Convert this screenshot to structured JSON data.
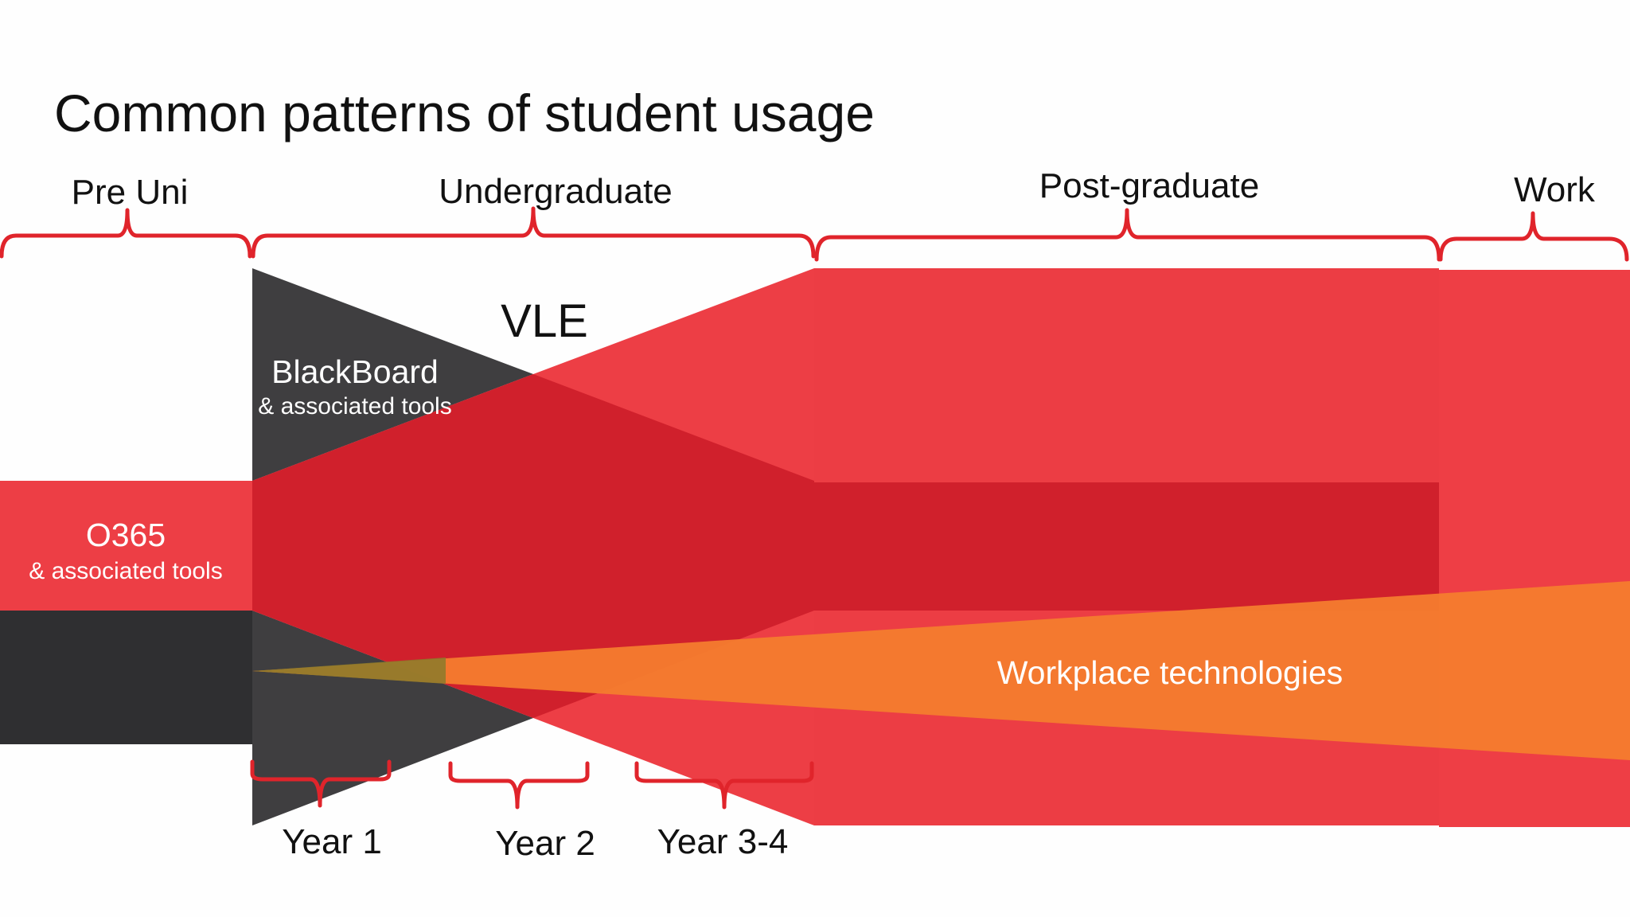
{
  "title": "Common patterns of student usage",
  "stages": {
    "pre_uni": "Pre Uni",
    "undergraduate": "Undergraduate",
    "postgraduate": "Post-graduate",
    "work": "Work"
  },
  "years": {
    "year1": "Year 1",
    "year2": "Year 2",
    "year34": "Year 3-4"
  },
  "flows": {
    "vle": "VLE",
    "blackboard": "BlackBoard",
    "blackboard_sub": "& associated tools",
    "o365": "O365",
    "o365_sub": "& associated tools",
    "workplace": "Workplace technologies"
  },
  "colors": {
    "red": "#ed3e45",
    "dark_red": "#d0202c",
    "charcoal": "#2f2f31",
    "orange": "#f47c2e",
    "brace": "#e0242b"
  }
}
